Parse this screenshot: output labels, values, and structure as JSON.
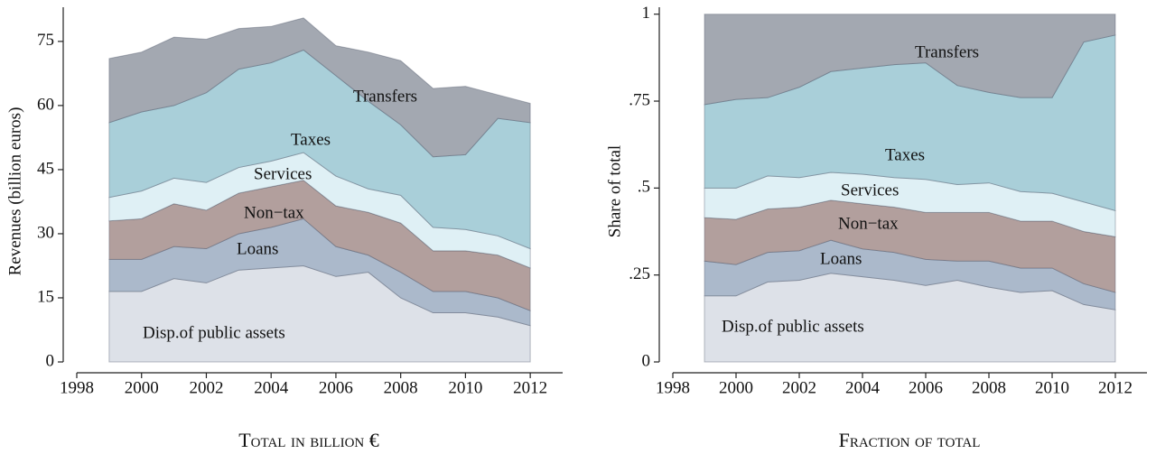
{
  "chart_data": [
    {
      "type": "area",
      "stacked": true,
      "ylabel": "Revenues (billion euros)",
      "xlabel": "Total in billion €",
      "x": [
        1999,
        2000,
        2001,
        2002,
        2003,
        2004,
        2005,
        2006,
        2007,
        2008,
        2009,
        2010,
        2011,
        2012
      ],
      "xlim": [
        1998,
        2013
      ],
      "xticks": [
        1998,
        2000,
        2002,
        2004,
        2006,
        2008,
        2010,
        2012
      ],
      "ylim": [
        0,
        83
      ],
      "yticks": [
        0,
        15,
        30,
        45,
        60,
        75
      ],
      "series": [
        {
          "name": "Disp.of public assets",
          "color": "#dde1e8",
          "values": [
            16.5,
            16.5,
            19.5,
            18.5,
            21.5,
            22,
            22.5,
            20,
            21,
            15,
            11.5,
            11.5,
            10.5,
            8.5
          ]
        },
        {
          "name": "Loans",
          "color": "#abb9cb",
          "values": [
            7.5,
            7.5,
            7.5,
            8,
            8.5,
            9.5,
            11,
            7,
            4,
            6,
            5,
            5,
            4.5,
            3.5
          ]
        },
        {
          "name": "Non−tax",
          "color": "#b29f9d",
          "values": [
            9,
            9.5,
            10,
            9,
            9.5,
            9.5,
            9,
            9.5,
            10,
            11.5,
            9.5,
            9.5,
            10,
            10
          ]
        },
        {
          "name": "Services",
          "color": "#dff0f5",
          "values": [
            5.5,
            6.5,
            6,
            6.5,
            6,
            6,
            6.5,
            7,
            5.5,
            6.5,
            5.5,
            5,
            4.5,
            4.5
          ]
        },
        {
          "name": "Taxes",
          "color": "#a9cfd9",
          "values": [
            17.5,
            18.5,
            17,
            21,
            23,
            23,
            24,
            23.5,
            20.5,
            16.5,
            16.5,
            17.5,
            27.5,
            29.5
          ]
        },
        {
          "name": "Transfers",
          "color": "#a3a8b1",
          "values": [
            15,
            14,
            16,
            12.5,
            9.5,
            8.5,
            7.5,
            7,
            11.5,
            15,
            16,
            16,
            5.5,
            4.5
          ]
        }
      ]
    },
    {
      "type": "area",
      "stacked": true,
      "ylabel": "Share of total",
      "xlabel": "Fraction of total",
      "x": [
        1999,
        2000,
        2001,
        2002,
        2003,
        2004,
        2005,
        2006,
        2007,
        2008,
        2009,
        2010,
        2011,
        2012
      ],
      "xlim": [
        1998,
        2013
      ],
      "xticks": [
        1998,
        2000,
        2002,
        2004,
        2006,
        2008,
        2010,
        2012
      ],
      "ylim": [
        0,
        1.02
      ],
      "yticks": [
        0,
        {
          "value": 0.25,
          "label": ".25"
        },
        {
          "value": 0.5,
          "label": ".5"
        },
        {
          "value": 0.75,
          "label": ".75"
        },
        1
      ],
      "series": [
        {
          "name": "Disp.of public assets",
          "color": "#dde1e8",
          "values": [
            0.19,
            0.19,
            0.23,
            0.235,
            0.255,
            0.245,
            0.235,
            0.22,
            0.235,
            0.215,
            0.2,
            0.205,
            0.165,
            0.15
          ]
        },
        {
          "name": "Loans",
          "color": "#abb9cb",
          "values": [
            0.1,
            0.09,
            0.085,
            0.085,
            0.095,
            0.08,
            0.08,
            0.075,
            0.055,
            0.075,
            0.07,
            0.065,
            0.06,
            0.05
          ]
        },
        {
          "name": "Non−tax",
          "color": "#b29f9d",
          "values": [
            0.125,
            0.13,
            0.125,
            0.125,
            0.115,
            0.13,
            0.13,
            0.135,
            0.14,
            0.14,
            0.135,
            0.135,
            0.15,
            0.16
          ]
        },
        {
          "name": "Services",
          "color": "#dff0f5",
          "values": [
            0.085,
            0.09,
            0.095,
            0.085,
            0.08,
            0.085,
            0.085,
            0.095,
            0.08,
            0.085,
            0.085,
            0.08,
            0.085,
            0.075
          ]
        },
        {
          "name": "Taxes",
          "color": "#a9cfd9",
          "values": [
            0.24,
            0.255,
            0.225,
            0.26,
            0.29,
            0.305,
            0.325,
            0.335,
            0.285,
            0.26,
            0.27,
            0.275,
            0.46,
            0.505
          ]
        },
        {
          "name": "Transfers",
          "color": "#a3a8b1",
          "values": [
            0.26,
            0.245,
            0.24,
            0.21,
            0.165,
            0.155,
            0.145,
            0.14,
            0.205,
            0.225,
            0.24,
            0.24,
            0.08,
            0.06
          ]
        }
      ]
    }
  ]
}
